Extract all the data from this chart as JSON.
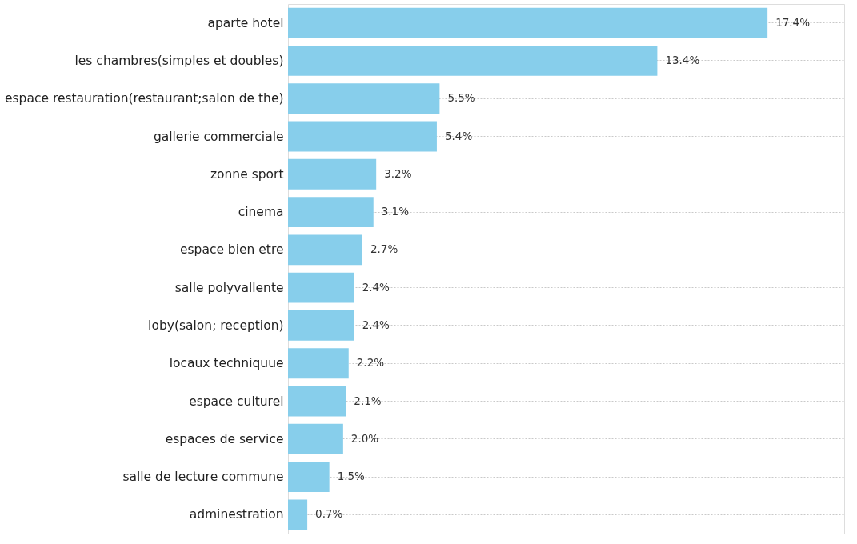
{
  "chart_data": {
    "type": "bar",
    "orientation": "horizontal",
    "relative": false,
    "categories": [
      "aparte hotel",
      "les chambres(simples et doubles)",
      "espace restauration(restaurant;salon de the)",
      "gallerie commerciale",
      "zonne sport",
      "cinema",
      "espace bien etre",
      "salle polyvallente",
      "loby(salon; reception)",
      "locaux techniquue",
      "espace culturel",
      "espaces de service",
      "salle de lecture commune",
      "adminestration"
    ],
    "values": [
      17.4,
      13.4,
      5.5,
      5.4,
      3.2,
      3.1,
      2.7,
      2.4,
      2.4,
      2.2,
      2.1,
      2.0,
      1.5,
      0.7
    ],
    "value_labels": [
      "17.4%",
      "13.4%",
      "5.5%",
      "5.4%",
      "3.2%",
      "3.1%",
      "2.7%",
      "2.4%",
      "2.4%",
      "2.2%",
      "2.1%",
      "2.0%",
      "1.5%",
      "0.7%"
    ],
    "color": "#87ceeb",
    "grid": "y"
  }
}
